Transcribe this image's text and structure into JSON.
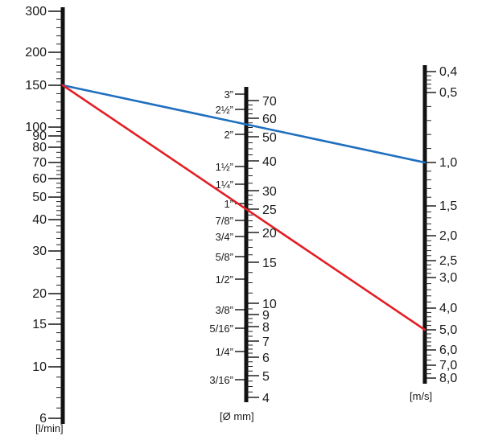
{
  "diagram": {
    "type": "nomogram",
    "scales": {
      "flow": {
        "unit": "[l/min]",
        "labels": [
          "300",
          "200",
          "150",
          "100",
          "90",
          "80",
          "70",
          "60",
          "50",
          "40",
          "30",
          "20",
          "15",
          "10",
          "6"
        ]
      },
      "diameter_mm": {
        "unit": "[Ø mm]",
        "labels": [
          "70",
          "60",
          "50",
          "40",
          "30",
          "25",
          "20",
          "15",
          "10",
          "9",
          "8",
          "7",
          "6",
          "5",
          "4"
        ]
      },
      "diameter_inch": {
        "labels": [
          "3”",
          "2½”",
          "2”",
          "1½”",
          "1¼”",
          "1”",
          "7/8”",
          "3/4”",
          "5/8”",
          "1/2”",
          "3/8”",
          "5/16”",
          "1/4”",
          "3/16”"
        ]
      },
      "velocity": {
        "unit": "[m/s]",
        "labels": [
          "0,4",
          "0,5",
          "1,0",
          "1,5",
          "2,0",
          "2,5",
          "3,0",
          "4,0",
          "5,0",
          "6,0",
          "7,0",
          "8,0"
        ]
      }
    },
    "example_lines": [
      {
        "color": "#1f6fbf",
        "flow": "150",
        "diameter_mm": "55",
        "velocity": "1,0"
      },
      {
        "color": "#e31e24",
        "flow": "150",
        "diameter_mm": "25",
        "velocity": "5,0"
      }
    ]
  }
}
